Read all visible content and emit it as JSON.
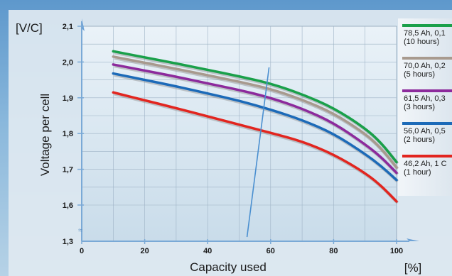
{
  "chart_data": {
    "type": "line",
    "ylabel_unit": "[V/C]",
    "ylabel": "Voltage per cell",
    "xlabel": "Capacity used",
    "xlabel_unit": "[%]",
    "xlim": [
      0,
      100
    ],
    "ylim": [
      1.3,
      2.1
    ],
    "x_ticks": [
      "0",
      "20",
      "40",
      "60",
      "80",
      "100"
    ],
    "y_ticks": [
      "1,3",
      "1,6",
      "1,7",
      "1,8",
      "1,9",
      "2,0",
      "2,1"
    ],
    "grid": true,
    "legend_placement": "right",
    "series": [
      {
        "name": "78,5 Ah, 0,1",
        "sub": "(10 hours)",
        "color": "#1aa04a",
        "x": [
          10,
          20,
          30,
          40,
          50,
          60,
          70,
          80,
          90,
          95,
          100
        ],
        "y": [
          2.03,
          2.013,
          1.996,
          1.978,
          1.96,
          1.94,
          1.91,
          1.872,
          1.815,
          1.775,
          1.72
        ]
      },
      {
        "name": "70,0 Ah, 0,2",
        "sub": "(5 hours)",
        "color": "#a89a8e",
        "x": [
          10,
          20,
          30,
          40,
          50,
          60,
          70,
          80,
          90,
          95,
          100
        ],
        "y": [
          2.015,
          1.998,
          1.981,
          1.963,
          1.945,
          1.925,
          1.895,
          1.857,
          1.8,
          1.76,
          1.705
        ]
      },
      {
        "name": "61,5 Ah, 0,3",
        "sub": "(3 hours)",
        "color": "#8c2a9c",
        "x": [
          10,
          20,
          30,
          40,
          50,
          60,
          70,
          80,
          90,
          95,
          100
        ],
        "y": [
          1.993,
          1.976,
          1.959,
          1.94,
          1.922,
          1.9,
          1.87,
          1.83,
          1.77,
          1.735,
          1.69
        ]
      },
      {
        "name": "56,0 Ah, 0,5",
        "sub": "(2 hours)",
        "color": "#1c6ab8",
        "x": [
          10,
          20,
          30,
          40,
          50,
          60,
          70,
          80,
          90,
          95,
          100
        ],
        "y": [
          1.968,
          1.95,
          1.932,
          1.912,
          1.892,
          1.867,
          1.838,
          1.8,
          1.743,
          1.71,
          1.67
        ]
      },
      {
        "name": "46,2 Ah, 1 C",
        "sub": "(1 hour)",
        "color": "#e2251f",
        "x": [
          10,
          20,
          30,
          40,
          50,
          60,
          70,
          80,
          90,
          95,
          100
        ],
        "y": [
          1.915,
          1.893,
          1.871,
          1.848,
          1.825,
          1.802,
          1.778,
          1.742,
          1.69,
          1.655,
          1.61
        ]
      }
    ],
    "annotation_line": {
      "x": [
        52.5,
        59.5
      ],
      "y": [
        1.335,
        1.985
      ]
    }
  }
}
